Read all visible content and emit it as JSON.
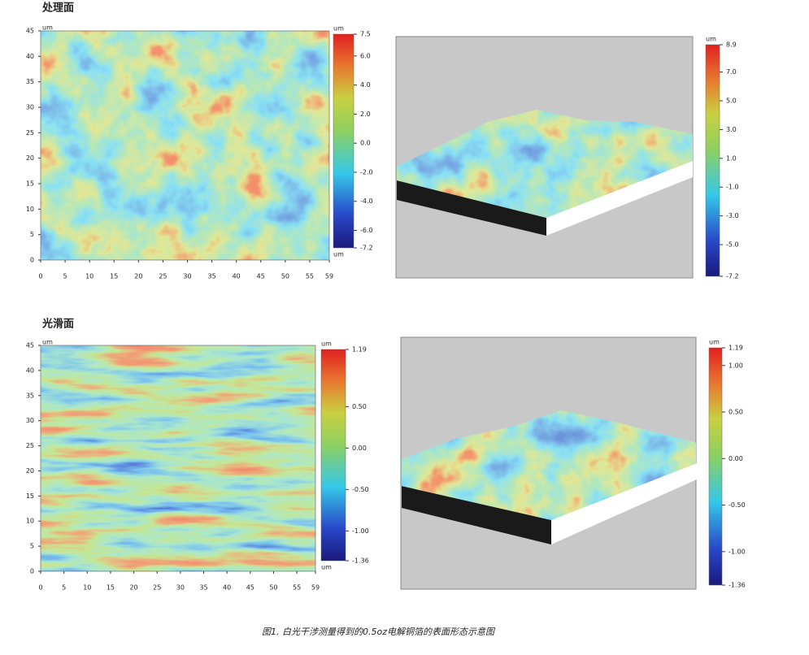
{
  "figure": {
    "caption": "图1. 白光干涉测量得到的0.5oz电解铜箔的表面形态示意图",
    "panels": [
      {
        "title": "处理面",
        "type": "heatmap",
        "unit": "um",
        "xlim": [
          0,
          59
        ],
        "xticks": [
          0,
          5,
          10,
          15,
          20,
          25,
          30,
          35,
          40,
          45,
          50,
          55,
          59
        ],
        "ylim": [
          0,
          45
        ],
        "yticks": [
          0,
          5,
          10,
          15,
          20,
          25,
          30,
          35,
          40,
          45
        ],
        "clim": [
          -7.2,
          7.5
        ],
        "cticks": [
          7.5,
          {
            "value": 6,
            "label": "6.0"
          },
          {
            "value": 4,
            "label": "4.0"
          },
          {
            "value": 2,
            "label": "2.0"
          },
          {
            "value": 0,
            "label": "0.0"
          },
          {
            "value": -2,
            "label": "-2.0"
          },
          {
            "value": -4,
            "label": "-4.0"
          },
          {
            "value": -6,
            "label": "-6.0"
          },
          -7.2
        ]
      },
      {
        "type": "surface3d",
        "unit": "um",
        "clim": [
          -7.2,
          8.9
        ],
        "cticks": [
          8.9,
          {
            "value": 7,
            "label": "7.0"
          },
          {
            "value": 5,
            "label": "5.0"
          },
          {
            "value": 3,
            "label": "3.0"
          },
          {
            "value": 1,
            "label": "1.0"
          },
          {
            "value": -1,
            "label": "-1.0"
          },
          {
            "value": -3,
            "label": "-3.0"
          },
          {
            "value": -5,
            "label": "-5.0"
          },
          -7.2
        ]
      },
      {
        "title": "光滑面",
        "type": "heatmap",
        "unit": "um",
        "xlim": [
          0,
          59
        ],
        "xticks": [
          0,
          5,
          10,
          15,
          20,
          25,
          30,
          35,
          40,
          45,
          50,
          55,
          59
        ],
        "ylim": [
          0,
          45
        ],
        "yticks": [
          0,
          5,
          10,
          15,
          20,
          25,
          30,
          35,
          40,
          45
        ],
        "clim": [
          -1.36,
          1.19
        ],
        "cticks": [
          1.19,
          {
            "value": 0.5,
            "label": "0.50"
          },
          {
            "value": 0,
            "label": "0.00"
          },
          {
            "value": -0.5,
            "label": "-0.50"
          },
          {
            "value": -1,
            "label": "-1.00"
          },
          -1.36
        ]
      },
      {
        "type": "surface3d",
        "unit": "um",
        "clim": [
          -1.36,
          1.19
        ],
        "cticks": [
          1.19,
          {
            "value": 1,
            "label": "1.00"
          },
          {
            "value": 0.5,
            "label": "0.50"
          },
          {
            "value": 0,
            "label": "0.00"
          },
          {
            "value": -0.5,
            "label": "-0.50"
          },
          {
            "value": -1,
            "label": "-1.00"
          },
          -1.36
        ]
      }
    ]
  }
}
